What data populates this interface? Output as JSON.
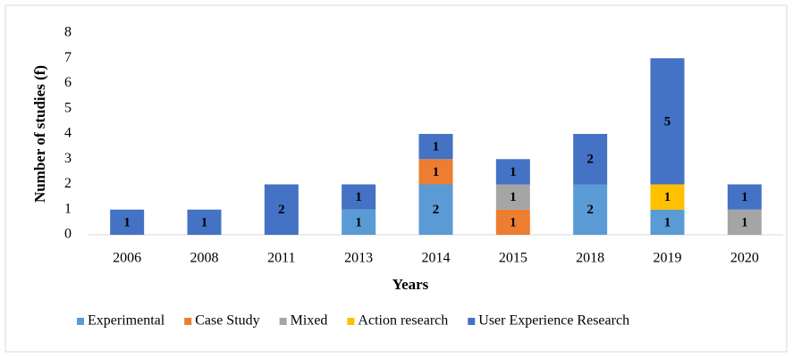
{
  "chart_data": {
    "type": "stacked_bar",
    "x_label": "Years",
    "y_label": "Number of studies (f)",
    "categories": [
      "2006",
      "2008",
      "2011",
      "2013",
      "2014",
      "2015",
      "2018",
      "2019",
      "2020"
    ],
    "series": [
      {
        "name": "Experimental",
        "color": "#5b9bd5",
        "values": [
          0,
          0,
          0,
          1,
          2,
          0,
          2,
          1,
          0
        ]
      },
      {
        "name": "Case Study",
        "color": "#ed7d31",
        "values": [
          0,
          0,
          0,
          0,
          1,
          1,
          0,
          0,
          0
        ]
      },
      {
        "name": "Mixed",
        "color": "#a5a5a5",
        "values": [
          0,
          0,
          0,
          0,
          0,
          1,
          0,
          0,
          1
        ]
      },
      {
        "name": "Action research",
        "color": "#ffc000",
        "values": [
          0,
          0,
          0,
          0,
          0,
          0,
          0,
          1,
          0
        ]
      },
      {
        "name": "User Experience Research",
        "color": "#4472c4",
        "values": [
          1,
          1,
          2,
          1,
          1,
          1,
          2,
          5,
          1
        ]
      }
    ],
    "ylim": [
      0,
      8
    ],
    "yticks": [
      0,
      1,
      2,
      3,
      4,
      5,
      6,
      7,
      8
    ],
    "grid": false,
    "legend": "bottom"
  }
}
